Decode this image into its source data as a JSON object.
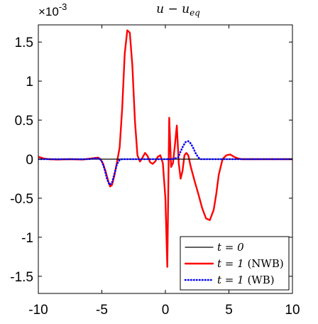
{
  "chart_data": {
    "type": "line",
    "title": "u − u_eq",
    "title_parts": {
      "main": "u − u",
      "sub": "eq"
    },
    "y_exponent_label": "×10^-3",
    "y_exponent_parts": {
      "base": "×10",
      "exp": "-3"
    },
    "xlim": [
      -10,
      10
    ],
    "ylim": [
      -1.72,
      1.72
    ],
    "x_ticks": [
      -10,
      -5,
      0,
      5,
      10
    ],
    "x_tick_labels": [
      "-10",
      "-5",
      "0",
      "5",
      "10"
    ],
    "y_ticks": [
      1.5,
      1,
      0.5,
      0,
      -0.5,
      -1,
      -1.5
    ],
    "y_tick_labels": [
      "1.5",
      "1",
      "0.5",
      "0",
      "-0.5",
      "-1",
      "-1.5"
    ],
    "grid": false,
    "legend_position": "bottom-right",
    "series": [
      {
        "name": "t = 0",
        "color": "#000000",
        "style": "solid",
        "x": [
          -10,
          10
        ],
        "y": [
          0,
          0
        ]
      },
      {
        "name": "t = 1 (NWB)",
        "color": "#ff0000",
        "style": "solid",
        "x": [
          -10,
          -9.6,
          -9.2,
          -8.5,
          -7.5,
          -6.5,
          -5.8,
          -5.3,
          -5.1,
          -4.9,
          -4.7,
          -4.5,
          -4.35,
          -4.2,
          -4.0,
          -3.8,
          -3.6,
          -3.4,
          -3.2,
          -3.0,
          -2.8,
          -2.6,
          -2.4,
          -2.2,
          -2.0,
          -1.8,
          -1.6,
          -1.4,
          -1.2,
          -1.0,
          -0.8,
          -0.6,
          -0.4,
          -0.2,
          0.0,
          0.15,
          0.3,
          0.45,
          0.6,
          0.75,
          0.9,
          1.05,
          1.2,
          1.35,
          1.5,
          1.65,
          1.8,
          2.0,
          2.3,
          2.6,
          2.9,
          3.2,
          3.5,
          3.8,
          4.0,
          4.2,
          4.5,
          4.8,
          5.1,
          5.4,
          5.7,
          6.0,
          6.3,
          6.6,
          7.0,
          7.5,
          8.0,
          9.0,
          10.0
        ],
        "y": [
          0.03,
          0.01,
          0.0,
          -0.005,
          0.0,
          -0.005,
          0.01,
          0.02,
          0.0,
          -0.06,
          -0.16,
          -0.28,
          -0.35,
          -0.33,
          -0.2,
          -0.03,
          0.15,
          0.65,
          1.35,
          1.65,
          1.62,
          1.2,
          0.5,
          0.05,
          -0.03,
          0.02,
          0.08,
          0.04,
          -0.04,
          -0.06,
          -0.03,
          0.03,
          0.05,
          -0.05,
          -0.5,
          -1.38,
          0.53,
          -0.1,
          -0.05,
          0.18,
          0.43,
          -0.05,
          -0.25,
          -0.15,
          0.05,
          0.08,
          0.05,
          -0.1,
          -0.28,
          -0.45,
          -0.63,
          -0.76,
          -0.78,
          -0.65,
          -0.45,
          -0.2,
          0.0,
          0.05,
          0.06,
          0.03,
          0.01,
          0.0,
          0.0,
          0.0,
          0.0,
          0.0,
          0.0,
          0.0,
          0.0
        ]
      },
      {
        "name": "t = 1 (WB)",
        "color": "#0000ff",
        "style": "dotted",
        "x": [
          -10,
          -9.0,
          -8.0,
          -7.0,
          -6.0,
          -5.5,
          -5.2,
          -5.0,
          -4.8,
          -4.6,
          -4.4,
          -4.2,
          -4.0,
          -3.8,
          -3.6,
          -3.4,
          -3.0,
          -2.0,
          -1.0,
          0.0,
          0.5,
          1.0,
          1.2,
          1.4,
          1.6,
          1.8,
          2.0,
          2.2,
          2.4,
          2.6,
          2.8,
          3.0,
          4.0,
          5.0,
          6.0,
          7.0,
          8.0,
          9.0,
          10.0
        ],
        "y": [
          0.0,
          0.0,
          0.0,
          0.0,
          0.0,
          0.01,
          0.01,
          -0.03,
          -0.12,
          -0.25,
          -0.33,
          -0.3,
          -0.18,
          -0.06,
          -0.01,
          0.0,
          0.0,
          0.0,
          0.0,
          0.0,
          0.0,
          0.02,
          0.1,
          0.17,
          0.22,
          0.23,
          0.2,
          0.14,
          0.07,
          0.02,
          0.0,
          0.0,
          0.0,
          0.0,
          0.0,
          0.0,
          0.0,
          0.0,
          0.0
        ]
      }
    ],
    "legend": {
      "entries": [
        {
          "label_main": "t = 0",
          "label_suffix": ""
        },
        {
          "label_main": "t = 1",
          "label_suffix": " (NWB)"
        },
        {
          "label_main": "t = 1",
          "label_suffix": " (WB)"
        }
      ]
    }
  }
}
